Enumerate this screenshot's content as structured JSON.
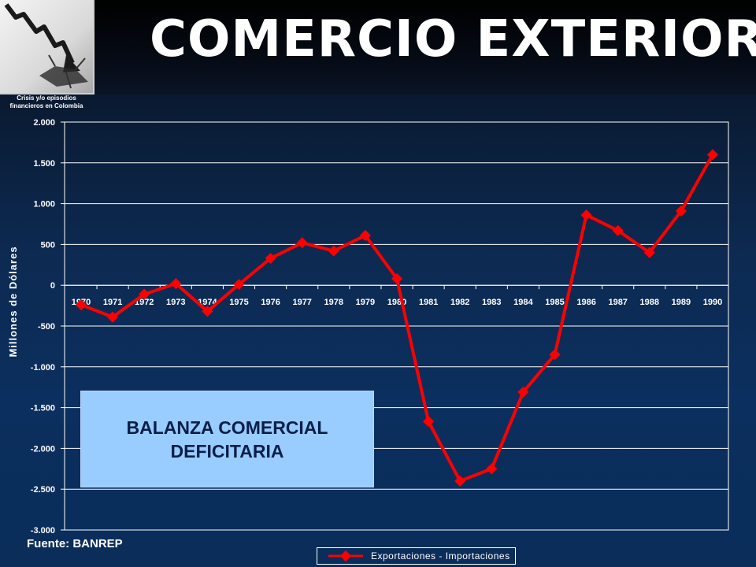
{
  "header": {
    "title": "COMERCIO EXTERIOR",
    "logo_caption_line1": "Crisis y/o episodios",
    "logo_caption_line2": "financieros en Colombia"
  },
  "callout": {
    "line1": "BALANZA COMERCIAL",
    "line2": "DEFICITARIA"
  },
  "source": "Fuente: BANREP",
  "colors": {
    "series": "#ff0000",
    "axis": "#ffffff",
    "callout_bg": "#99ccff"
  },
  "chart_data": {
    "type": "line",
    "title": "",
    "xlabel": "",
    "ylabel": "Millones de Dólares",
    "ylim": [
      -3000,
      2000
    ],
    "y_ticks": [
      2000,
      1500,
      1000,
      500,
      0,
      -500,
      -1000,
      -1500,
      -2000,
      -2500,
      -3000
    ],
    "y_tick_labels": [
      "2.000",
      "1.500",
      "1.000",
      "500",
      "0",
      "-500",
      "-1.000",
      "-1.500",
      "-2.000",
      "-2.500",
      "-3.000"
    ],
    "grid": "horizontal",
    "legend_position": "bottom",
    "categories": [
      "1970",
      "1971",
      "1972",
      "1973",
      "1974",
      "1975",
      "1976",
      "1977",
      "1978",
      "1979",
      "1980",
      "1981",
      "1982",
      "1983",
      "1984",
      "1985",
      "1986",
      "1987",
      "1988",
      "1989",
      "1990"
    ],
    "series": [
      {
        "name": "Exportaciones - Importaciones",
        "values": [
          -240,
          -390,
          -110,
          20,
          -320,
          10,
          330,
          520,
          420,
          610,
          80,
          -1670,
          -2400,
          -2250,
          -1310,
          -850,
          860,
          670,
          400,
          910,
          1600
        ]
      }
    ]
  }
}
